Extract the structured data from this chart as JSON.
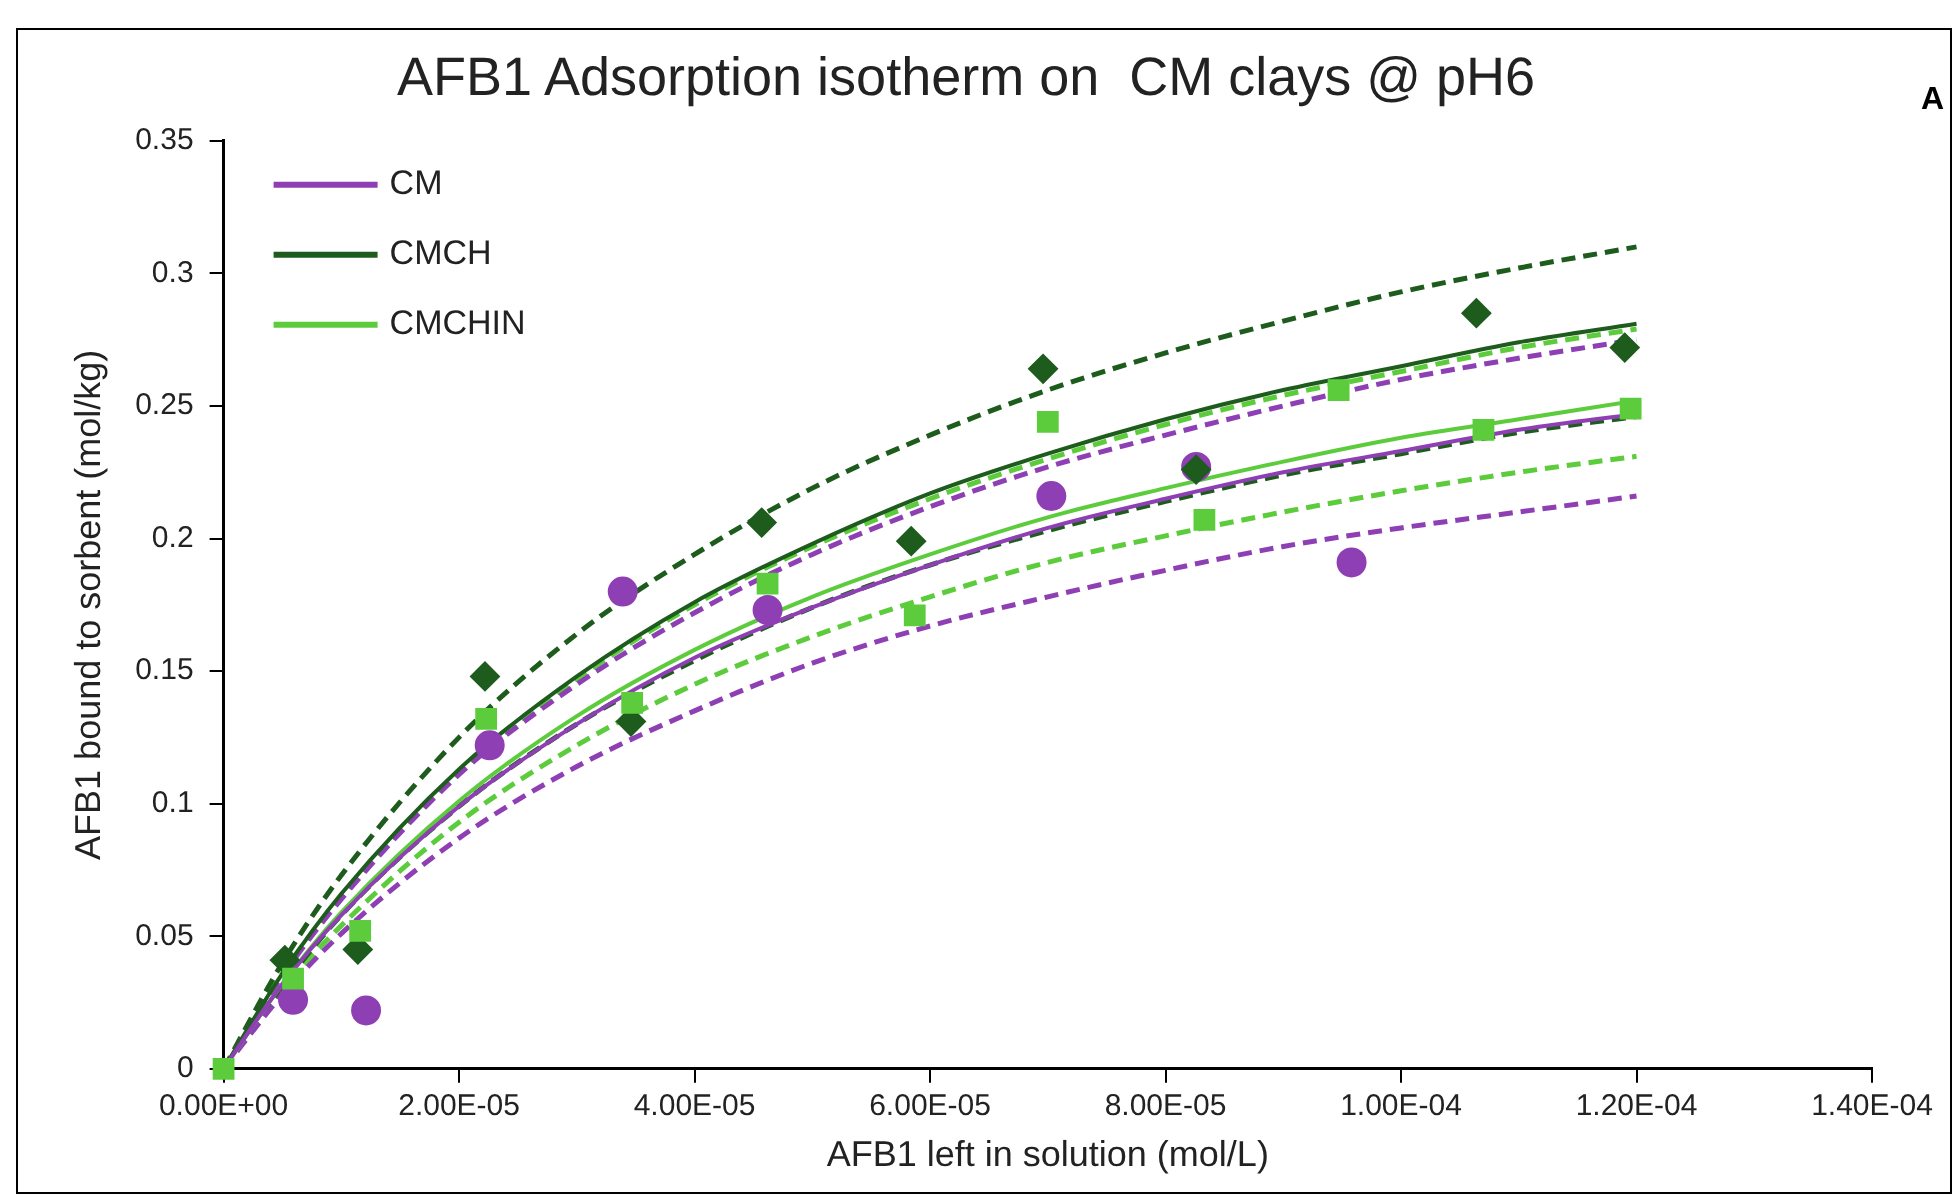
{
  "chart_data": {
    "type": "scatter",
    "title": "AFB1 Adsorption isotherm on  CM clays @ pH6",
    "xlabel": "AFB1 left in solution (mol/L)",
    "ylabel": "AFB1 bound to sorbent (mol/kg)",
    "annotations": [
      "A"
    ],
    "xlim": [
      0,
      0.00014
    ],
    "xticks": [
      {
        "value": 0,
        "label": "0.00E+00"
      },
      {
        "value": 2e-05,
        "label": "2.00E-05"
      },
      {
        "value": 4e-05,
        "label": "4.00E-05"
      },
      {
        "value": 6e-05,
        "label": "6.00E-05"
      },
      {
        "value": 8e-05,
        "label": "8.00E-05"
      },
      {
        "value": 0.0001,
        "label": "1.00E-04"
      },
      {
        "value": 0.00012,
        "label": "1.20E-04"
      },
      {
        "value": 0.00014,
        "label": "1.40E-04"
      }
    ],
    "ylim": [
      0,
      0.35
    ],
    "yticks": [
      0,
      0.05,
      0.1,
      0.15,
      0.2,
      0.25,
      0.3,
      0.35
    ],
    "grid": false,
    "legend": "top left",
    "series": [
      {
        "type": "line",
        "name": "CM",
        "color": "#8e3fb4",
        "line_style": "solid",
        "marker": "none",
        "x": [
          0,
          5e-06,
          1e-05,
          2e-05,
          3e-05,
          4e-05,
          5e-05,
          6e-05,
          7e-05,
          8e-05,
          9e-05,
          0.0001,
          0.00011,
          0.00012
        ],
        "values": [
          0,
          0.032,
          0.058,
          0.099,
          0.13,
          0.155,
          0.174,
          0.19,
          0.204,
          0.215,
          0.225,
          0.233,
          0.241,
          0.247
        ]
      },
      {
        "type": "line",
        "name": "CMCH",
        "color": "#1e5c1e",
        "line_style": "solid",
        "marker": "none",
        "x": [
          0,
          5e-06,
          1e-05,
          2e-05,
          3e-05,
          4e-05,
          5e-05,
          6e-05,
          7e-05,
          8e-05,
          9e-05,
          0.0001,
          0.00011,
          0.00012
        ],
        "values": [
          0,
          0.036,
          0.066,
          0.113,
          0.148,
          0.176,
          0.198,
          0.217,
          0.232,
          0.245,
          0.256,
          0.265,
          0.274,
          0.281
        ]
      },
      {
        "type": "line",
        "name": "CMCHIN",
        "color": "#5ccc3c",
        "line_style": "solid",
        "marker": "none",
        "x": [
          0,
          5e-06,
          1e-05,
          2e-05,
          3e-05,
          4e-05,
          5e-05,
          6e-05,
          7e-05,
          8e-05,
          9e-05,
          0.0001,
          0.00011,
          0.00012
        ],
        "values": [
          0,
          0.032,
          0.059,
          0.101,
          0.133,
          0.158,
          0.178,
          0.194,
          0.208,
          0.219,
          0.229,
          0.238,
          0.245,
          0.252
        ]
      },
      {
        "type": "line",
        "color": "#8e3fb4",
        "line_style": "dashed",
        "marker": "none",
        "x": [
          0,
          5e-06,
          1e-05,
          2e-05,
          3e-05,
          4e-05,
          5e-05,
          6e-05,
          7e-05,
          8e-05,
          9e-05,
          0.0001,
          0.00011,
          0.00012
        ],
        "values": [
          0,
          0.035,
          0.064,
          0.111,
          0.145,
          0.172,
          0.194,
          0.212,
          0.227,
          0.239,
          0.25,
          0.26,
          0.268,
          0.275
        ]
      },
      {
        "type": "line",
        "color": "#8e3fb4",
        "line_style": "dashed",
        "marker": "none",
        "x": [
          0,
          5e-06,
          1e-05,
          2e-05,
          3e-05,
          4e-05,
          5e-05,
          6e-05,
          7e-05,
          8e-05,
          9e-05,
          0.0001,
          0.00011,
          0.00012
        ],
        "values": [
          0,
          0.028,
          0.051,
          0.087,
          0.114,
          0.135,
          0.153,
          0.167,
          0.178,
          0.188,
          0.197,
          0.204,
          0.21,
          0.216
        ]
      },
      {
        "type": "line",
        "color": "#1e5c1e",
        "line_style": "dashed",
        "marker": "none",
        "x": [
          0,
          5e-06,
          1e-05,
          2e-05,
          3e-05,
          4e-05,
          5e-05,
          6e-05,
          7e-05,
          8e-05,
          9e-05,
          0.0001,
          0.00011,
          0.00012
        ],
        "values": [
          0,
          0.04,
          0.073,
          0.125,
          0.164,
          0.194,
          0.219,
          0.239,
          0.256,
          0.27,
          0.282,
          0.293,
          0.302,
          0.31
        ]
      },
      {
        "type": "line",
        "color": "#1e5c1e",
        "line_style": "dashed",
        "marker": "none",
        "x": [
          0,
          5e-06,
          1e-05,
          2e-05,
          3e-05,
          4e-05,
          5e-05,
          6e-05,
          7e-05,
          8e-05,
          9e-05,
          0.0001,
          0.00011,
          0.00012
        ],
        "values": [
          0,
          0.031,
          0.058,
          0.099,
          0.13,
          0.154,
          0.174,
          0.19,
          0.203,
          0.214,
          0.224,
          0.232,
          0.24,
          0.246
        ]
      },
      {
        "type": "line",
        "color": "#5ccc3c",
        "line_style": "dashed",
        "marker": "none",
        "x": [
          0,
          5e-06,
          1e-05,
          2e-05,
          3e-05,
          4e-05,
          5e-05,
          6e-05,
          7e-05,
          8e-05,
          9e-05,
          0.0001,
          0.00011,
          0.00012
        ],
        "values": [
          0,
          0.036,
          0.065,
          0.112,
          0.147,
          0.175,
          0.197,
          0.215,
          0.23,
          0.243,
          0.254,
          0.263,
          0.272,
          0.279
        ]
      },
      {
        "type": "line",
        "color": "#5ccc3c",
        "line_style": "dashed",
        "marker": "none",
        "x": [
          0,
          5e-06,
          1e-05,
          2e-05,
          3e-05,
          4e-05,
          5e-05,
          6e-05,
          7e-05,
          8e-05,
          9e-05,
          0.0001,
          0.00011,
          0.00012
        ],
        "values": [
          0,
          0.03,
          0.054,
          0.093,
          0.122,
          0.145,
          0.163,
          0.178,
          0.191,
          0.201,
          0.21,
          0.218,
          0.225,
          0.231
        ]
      },
      {
        "type": "scatter",
        "color": "#8e3fb4",
        "marker": "circle",
        "x": [
          5.9e-06,
          1.21e-05,
          2.26e-05,
          3.39e-05,
          4.62e-05,
          7.03e-05,
          8.26e-05,
          9.58e-05
        ],
        "values": [
          0.026,
          0.022,
          0.122,
          0.18,
          0.173,
          0.216,
          0.227,
          0.191
        ]
      },
      {
        "type": "scatter",
        "color": "#1e5c1e",
        "marker": "diamond",
        "x": [
          5.2e-06,
          1.14e-05,
          2.22e-05,
          3.46e-05,
          4.57e-05,
          5.84e-05,
          6.96e-05,
          8.26e-05,
          0.0001064,
          0.000119
        ],
        "values": [
          0.041,
          0.045,
          0.148,
          0.131,
          0.206,
          0.199,
          0.264,
          0.226,
          0.285,
          0.272
        ]
      },
      {
        "type": "scatter",
        "color": "#5ccc3c",
        "marker": "square",
        "x": [
          0,
          5.9e-06,
          1.16e-05,
          2.23e-05,
          3.47e-05,
          4.62e-05,
          5.87e-05,
          7e-05,
          8.33e-05,
          9.47e-05,
          0.000107,
          0.0001195
        ],
        "values": [
          0,
          0.034,
          0.052,
          0.132,
          0.138,
          0.183,
          0.171,
          0.244,
          0.207,
          0.256,
          0.241,
          0.249
        ]
      }
    ]
  }
}
